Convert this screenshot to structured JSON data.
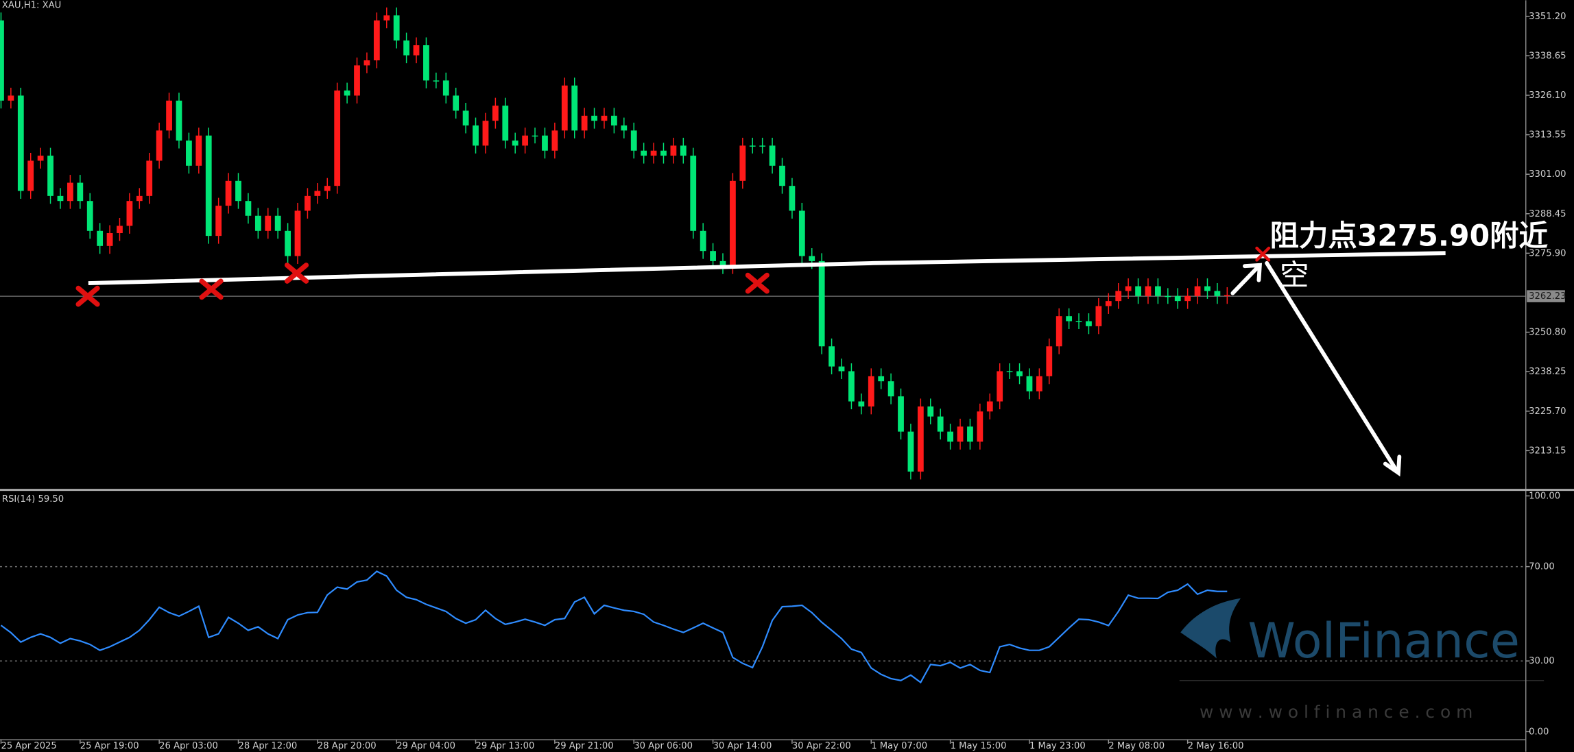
{
  "chart_data": [
    {
      "type": "candlestick",
      "title": "XAU,H1: XAU",
      "open": [
        3349.9,
        3324.4,
        3326.0,
        3295.7,
        3305.3,
        3306.9,
        3294.1,
        3292.5,
        3298.3,
        3292.5,
        3283.0,
        3278.2,
        3282.3,
        3284.6,
        3292.5,
        3294.1,
        3305.3,
        3314.9,
        3324.4,
        3311.7,
        3303.7,
        3313.3,
        3281.4,
        3291.0,
        3298.9,
        3292.5,
        3287.8,
        3283.0,
        3287.8,
        3283.0,
        3275.0,
        3289.4,
        3294.1,
        3295.7,
        3297.3,
        3327.6,
        3326.0,
        3335.6,
        3337.2,
        3349.9,
        3351.5,
        3343.5,
        3338.8,
        3342.0,
        3330.8,
        3330.8,
        3326.0,
        3321.2,
        3316.5,
        3310.1,
        3318.0,
        3322.8,
        3311.7,
        3310.1,
        3313.3,
        3313.3,
        3308.5,
        3314.9,
        3329.2,
        3314.9,
        3319.6,
        3318.0,
        3319.6,
        3316.5,
        3314.9,
        3308.5,
        3306.9,
        3308.5,
        3306.9,
        3310.1,
        3306.9,
        3283.0,
        3276.6,
        3273.4,
        3271.8,
        3298.9,
        3310.1,
        3310.1,
        3310.1,
        3303.7,
        3297.3,
        3289.4,
        3275.0,
        3273.4,
        3246.3,
        3239.9,
        3238.4,
        3228.8,
        3227.2,
        3236.8,
        3235.2,
        3230.4,
        3219.2,
        3206.5,
        3227.2,
        3224.0,
        3219.2,
        3216.0,
        3220.8,
        3216.0,
        3225.6,
        3228.8,
        3238.4,
        3238.4,
        3236.8,
        3232.0,
        3236.8,
        3246.3,
        3255.9,
        3254.3,
        3254.3,
        3252.7,
        3259.1,
        3260.7,
        3263.9,
        3265.4,
        3262.3,
        3265.4,
        3262.3,
        3262.3,
        3260.7,
        3262.3,
        3265.4,
        3263.9,
        3262.3
      ],
      "high": [
        3352.4,
        3328.5,
        3328.5,
        3307.8,
        3309.4,
        3309.4,
        3296.6,
        3300.8,
        3300.8,
        3295.0,
        3285.5,
        3284.8,
        3287.1,
        3295.0,
        3296.6,
        3307.8,
        3317.4,
        3326.9,
        3326.9,
        3314.2,
        3315.8,
        3315.8,
        3293.5,
        3301.4,
        3301.4,
        3295.0,
        3290.3,
        3290.3,
        3290.3,
        3285.5,
        3291.9,
        3296.6,
        3298.2,
        3299.8,
        3330.1,
        3330.1,
        3338.1,
        3339.7,
        3352.4,
        3354.0,
        3354.0,
        3346.0,
        3344.5,
        3344.5,
        3333.3,
        3333.3,
        3328.5,
        3323.7,
        3319.0,
        3320.5,
        3325.3,
        3325.3,
        3314.2,
        3315.8,
        3315.8,
        3315.8,
        3317.4,
        3331.7,
        3331.7,
        3322.1,
        3322.1,
        3322.1,
        3322.1,
        3319.0,
        3317.4,
        3311.0,
        3311.0,
        3311.0,
        3312.6,
        3312.6,
        3309.4,
        3285.5,
        3279.1,
        3275.9,
        3301.4,
        3312.6,
        3312.6,
        3312.6,
        3312.6,
        3306.2,
        3299.8,
        3291.9,
        3277.5,
        3275.9,
        3248.8,
        3242.4,
        3240.9,
        3231.3,
        3239.3,
        3239.3,
        3237.7,
        3232.9,
        3221.7,
        3229.7,
        3229.7,
        3226.5,
        3221.7,
        3223.3,
        3223.3,
        3228.1,
        3231.3,
        3240.9,
        3240.9,
        3240.9,
        3239.3,
        3239.3,
        3248.8,
        3258.4,
        3258.4,
        3256.8,
        3256.8,
        3261.6,
        3263.2,
        3266.4,
        3267.9,
        3267.9,
        3267.9,
        3267.9,
        3264.8,
        3264.8,
        3264.8,
        3267.9,
        3267.9,
        3266.4,
        3265.1
      ],
      "low": [
        3321.9,
        3321.9,
        3293.2,
        3293.2,
        3302.8,
        3291.6,
        3290.0,
        3290.0,
        3290.0,
        3280.5,
        3275.7,
        3275.7,
        3279.8,
        3282.1,
        3290.0,
        3291.6,
        3302.8,
        3312.4,
        3309.2,
        3301.2,
        3301.2,
        3278.9,
        3278.9,
        3288.5,
        3290.0,
        3285.3,
        3280.5,
        3280.5,
        3280.5,
        3272.5,
        3272.5,
        3286.9,
        3291.6,
        3293.2,
        3294.8,
        3323.5,
        3323.5,
        3333.1,
        3334.7,
        3347.4,
        3341.0,
        3336.3,
        3336.3,
        3328.3,
        3328.3,
        3323.5,
        3318.7,
        3314.0,
        3307.6,
        3307.6,
        3315.5,
        3309.2,
        3307.6,
        3307.6,
        3310.8,
        3306.0,
        3306.0,
        3312.4,
        3312.4,
        3312.4,
        3315.5,
        3315.5,
        3314.0,
        3312.4,
        3306.0,
        3304.4,
        3304.4,
        3304.4,
        3304.4,
        3304.4,
        3280.5,
        3274.1,
        3270.9,
        3269.3,
        3269.3,
        3296.4,
        3307.6,
        3307.6,
        3301.2,
        3294.8,
        3286.9,
        3272.5,
        3270.9,
        3243.8,
        3237.4,
        3235.9,
        3226.3,
        3224.7,
        3224.7,
        3232.7,
        3227.9,
        3216.7,
        3204.0,
        3204.0,
        3221.5,
        3216.7,
        3213.5,
        3213.5,
        3213.5,
        3213.5,
        3223.1,
        3226.3,
        3235.9,
        3234.3,
        3229.5,
        3229.5,
        3234.3,
        3243.8,
        3251.8,
        3251.8,
        3250.2,
        3250.2,
        3256.6,
        3258.2,
        3261.4,
        3259.8,
        3259.8,
        3259.8,
        3259.8,
        3258.2,
        3258.2,
        3259.8,
        3261.4,
        3259.8,
        3259.8
      ],
      "close": [
        3324.4,
        3326.0,
        3295.7,
        3305.3,
        3306.9,
        3294.1,
        3292.5,
        3298.3,
        3292.5,
        3283.0,
        3278.2,
        3282.3,
        3284.6,
        3292.5,
        3294.1,
        3305.3,
        3314.9,
        3324.4,
        3311.7,
        3303.7,
        3313.3,
        3281.4,
        3291.0,
        3298.9,
        3292.5,
        3287.8,
        3283.0,
        3287.8,
        3283.0,
        3275.0,
        3289.4,
        3294.1,
        3295.7,
        3297.3,
        3327.6,
        3326.0,
        3335.6,
        3337.2,
        3349.9,
        3351.5,
        3343.5,
        3338.8,
        3342.0,
        3330.8,
        3330.8,
        3326.0,
        3321.2,
        3316.5,
        3310.1,
        3318.0,
        3322.8,
        3311.7,
        3310.1,
        3313.3,
        3313.3,
        3308.5,
        3314.9,
        3329.2,
        3314.9,
        3319.6,
        3318.0,
        3319.6,
        3316.5,
        3314.9,
        3308.5,
        3306.9,
        3308.5,
        3306.9,
        3310.1,
        3306.9,
        3283.0,
        3276.6,
        3273.4,
        3271.8,
        3298.9,
        3310.1,
        3310.1,
        3310.1,
        3303.7,
        3297.3,
        3289.4,
        3275.0,
        3273.4,
        3246.3,
        3239.9,
        3238.4,
        3228.8,
        3227.2,
        3236.8,
        3235.2,
        3230.4,
        3219.2,
        3206.5,
        3227.2,
        3224.0,
        3219.2,
        3216.0,
        3220.8,
        3216.0,
        3225.6,
        3228.8,
        3238.4,
        3238.4,
        3236.8,
        3232.0,
        3236.8,
        3246.3,
        3255.9,
        3254.3,
        3254.3,
        3252.7,
        3259.1,
        3260.7,
        3263.9,
        3265.4,
        3262.3,
        3265.4,
        3262.3,
        3262.3,
        3260.7,
        3262.3,
        3265.4,
        3263.9,
        3262.3,
        3262.6
      ],
      "up_color": "#ff1a1a",
      "down_color": "#00e676",
      "xlim": [
        0,
        154.2
      ],
      "ylim": [
        3201.0,
        3356.3
      ],
      "yticks": [
        {
          "value": 3351.2,
          "label": "3351.20"
        },
        {
          "value": 3338.65,
          "label": "3338.65"
        },
        {
          "value": 3326.1,
          "label": "3326.10"
        },
        {
          "value": 3313.55,
          "label": "3313.55"
        },
        {
          "value": 3301.0,
          "label": "3301.00"
        },
        {
          "value": 3288.45,
          "label": "3288.45"
        },
        {
          "value": 3275.9,
          "label": "3275.90"
        },
        {
          "value": 3250.8,
          "label": "3250.80"
        },
        {
          "value": 3238.25,
          "label": "3238.25"
        },
        {
          "value": 3225.7,
          "label": "3225.70"
        },
        {
          "value": 3213.15,
          "label": "3213.15"
        }
      ],
      "current_price": 3262.23,
      "grid": false,
      "annotations": [
        "阻力点3275.90附近",
        "空"
      ]
    },
    {
      "type": "line",
      "title": "RSI(14) 59.50",
      "color": "#2f8cff",
      "values": [
        45.1,
        42,
        38,
        40,
        41.5,
        40,
        37.5,
        39.5,
        38.5,
        37,
        34.5,
        36,
        38,
        40,
        43,
        47.5,
        52.8,
        50.5,
        49,
        51,
        53.2,
        40,
        41.5,
        48.5,
        46,
        43,
        44.5,
        41.5,
        39.5,
        47.5,
        49.5,
        50.5,
        50.6,
        58,
        61.3,
        60.5,
        63.5,
        64.3,
        68,
        66,
        60,
        57,
        56,
        54,
        52.5,
        51,
        48,
        46,
        47.5,
        51.5,
        48,
        45.5,
        46.5,
        47.7,
        46.5,
        45.1,
        47.5,
        48,
        55,
        57,
        50,
        53.6,
        52.5,
        51.5,
        51,
        49.8,
        46.5,
        45.1,
        43.5,
        42.1,
        44,
        46,
        44,
        42.1,
        31.5,
        29,
        27.2,
        36,
        47.2,
        53,
        53.2,
        53.6,
        50.5,
        46.4,
        43,
        39.5,
        35,
        33.6,
        27,
        24.3,
        22.5,
        21.7,
        24,
        20.9,
        28.5,
        28,
        29.4,
        27,
        28.5,
        26,
        25.1,
        36,
        37,
        35.5,
        34.5,
        34.5,
        36,
        40,
        44,
        47.7,
        47.5,
        46.5,
        45,
        51,
        57.9,
        56.6,
        56.6,
        56.5,
        59.1,
        60,
        62.6,
        58.3,
        60,
        59.5,
        59.5
      ],
      "xlim": [
        0,
        154.2
      ],
      "ylim": [
        -3.4,
        101.7
      ],
      "yticks": [
        {
          "value": 100,
          "label": "100.00"
        },
        {
          "value": 70,
          "label": "70.00"
        },
        {
          "value": 30,
          "label": "30.00"
        },
        {
          "value": 0,
          "label": "0.00"
        }
      ],
      "levels": [
        70,
        30
      ],
      "xticks": [
        {
          "value": 0,
          "label": "25 Apr 2025"
        },
        {
          "value": 8,
          "label": "25 Apr 19:00"
        },
        {
          "value": 16,
          "label": "26 Apr 03:00"
        },
        {
          "value": 24,
          "label": "28 Apr 12:00"
        },
        {
          "value": 32,
          "label": "28 Apr 20:00"
        },
        {
          "value": 40,
          "label": "29 Apr 04:00"
        },
        {
          "value": 48,
          "label": "29 Apr 13:00"
        },
        {
          "value": 56,
          "label": "29 Apr 21:00"
        },
        {
          "value": 64,
          "label": "30 Apr 06:00"
        },
        {
          "value": 72,
          "label": "30 Apr 14:00"
        },
        {
          "value": 80,
          "label": "30 Apr 22:00"
        },
        {
          "value": 88,
          "label": "1 May 07:00"
        },
        {
          "value": 96,
          "label": "1 May 15:00"
        },
        {
          "value": 104,
          "label": "1 May 23:00"
        },
        {
          "value": 112,
          "label": "2 May 08:00"
        },
        {
          "value": 120,
          "label": "2 May 16:00"
        }
      ]
    }
  ],
  "watermark": {
    "name": "WolFinance",
    "url": "w w w . w o l f i n a n c e . c o m"
  }
}
